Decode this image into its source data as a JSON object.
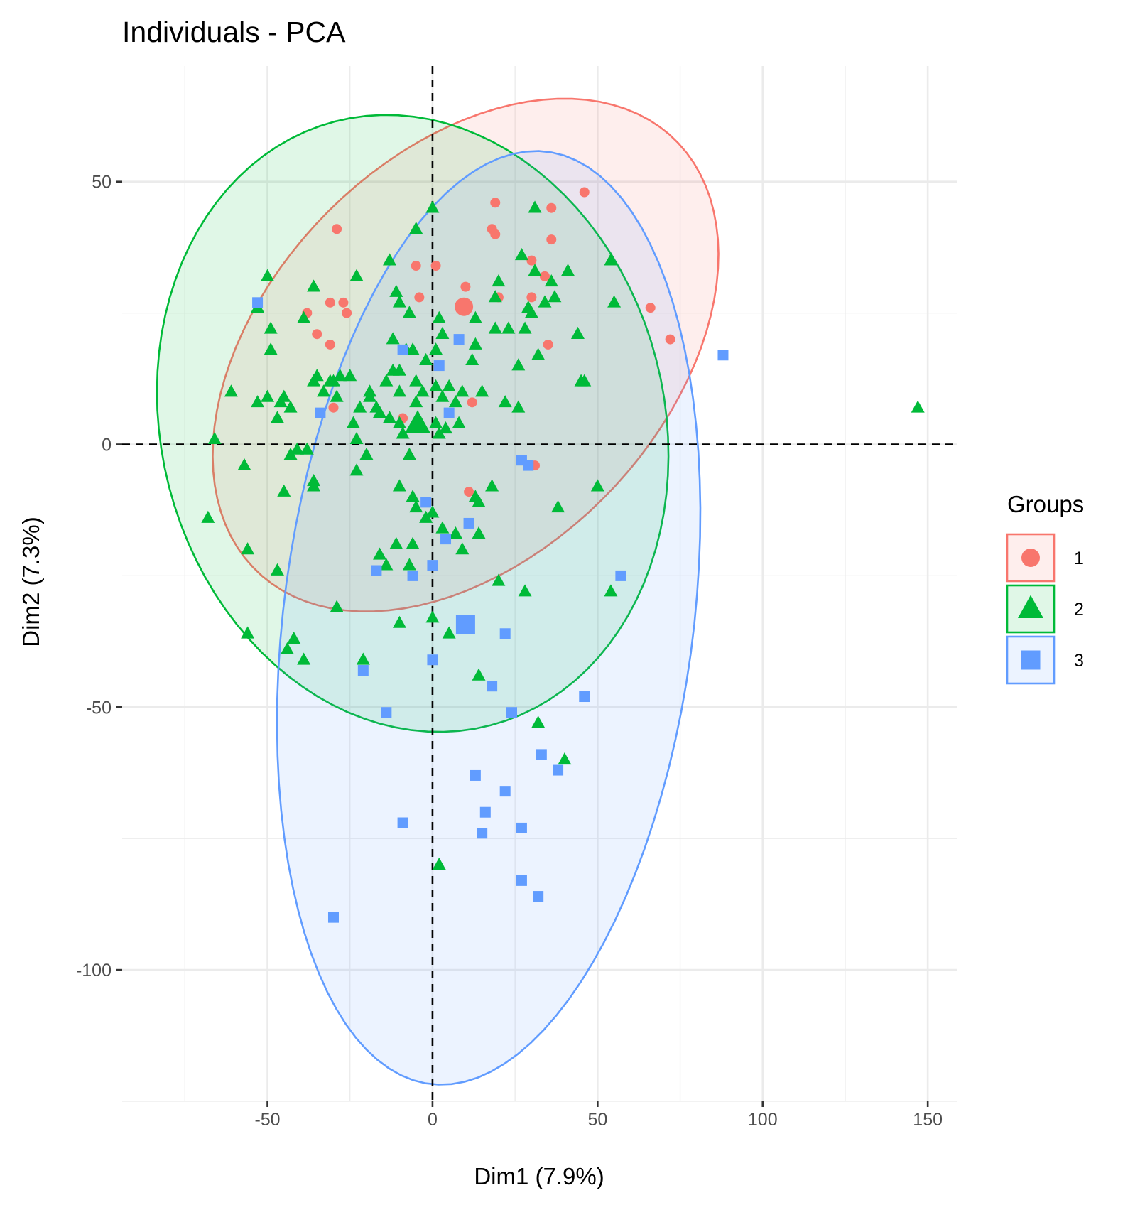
{
  "chart_data": {
    "type": "scatter",
    "title": "Individuals - PCA",
    "xlabel": "Dim1 (7.9%)",
    "ylabel": "Dim2 (7.3%)",
    "xlim": [
      -94,
      159
    ],
    "ylim": [
      -125,
      72
    ],
    "x_ticks": [
      -50,
      0,
      50,
      100,
      150
    ],
    "y_ticks": [
      50,
      0,
      -50,
      -100
    ],
    "grid": true,
    "reference_lines": {
      "x": 0,
      "y": 0,
      "style": "dashed"
    },
    "legend": {
      "title": "Groups",
      "placement": "right"
    },
    "colors": {
      "1": "#f8766d",
      "2": "#00ba38",
      "3": "#619cff"
    },
    "series": [
      {
        "name": "1",
        "marker": "circle",
        "color": "#f8766d",
        "centroid": [
          9.5,
          26.2
        ],
        "ellipse": {
          "cx": 10,
          "cy": 17,
          "rx": 80,
          "ry": 43,
          "angle_deg": 20
        },
        "points": [
          [
            46,
            48
          ],
          [
            19,
            46
          ],
          [
            36,
            45
          ],
          [
            -29,
            41
          ],
          [
            18,
            41
          ],
          [
            19,
            40
          ],
          [
            36,
            39
          ],
          [
            30,
            35
          ],
          [
            -5,
            34
          ],
          [
            1,
            34
          ],
          [
            34,
            32
          ],
          [
            10,
            30
          ],
          [
            -4,
            28
          ],
          [
            20,
            28
          ],
          [
            30,
            28
          ],
          [
            -31,
            27
          ],
          [
            -27,
            27
          ],
          [
            -38,
            25
          ],
          [
            -26,
            25
          ],
          [
            66,
            26
          ],
          [
            -35,
            21
          ],
          [
            35,
            19
          ],
          [
            -31,
            19
          ],
          [
            72,
            20
          ],
          [
            -30,
            7
          ],
          [
            12,
            8
          ],
          [
            -9,
            5
          ],
          [
            31,
            -4
          ],
          [
            11,
            -9
          ]
        ]
      },
      {
        "name": "2",
        "marker": "triangle",
        "color": "#00ba38",
        "centroid": [
          -4.5,
          3.9
        ],
        "ellipse": {
          "cx": -6,
          "cy": 4,
          "rx": 78,
          "ry": 58,
          "angle_deg": -10
        },
        "points": [
          [
            147,
            7
          ],
          [
            -66,
            1
          ],
          [
            -57,
            -4
          ],
          [
            -68,
            -14
          ],
          [
            -56,
            -20
          ],
          [
            -47,
            -24
          ],
          [
            -56,
            -36
          ],
          [
            -42,
            -37
          ],
          [
            -44,
            -39
          ],
          [
            -39,
            -41
          ],
          [
            -29,
            -31
          ],
          [
            -21,
            -41
          ],
          [
            -10,
            -34
          ],
          [
            0,
            -33
          ],
          [
            5,
            -36
          ],
          [
            14,
            -44
          ],
          [
            32,
            -53
          ],
          [
            40,
            -60
          ],
          [
            2,
            -80
          ],
          [
            -61,
            10
          ],
          [
            -53,
            26
          ],
          [
            -50,
            32
          ],
          [
            -49,
            22
          ],
          [
            -49,
            18
          ],
          [
            -43,
            7
          ],
          [
            -45,
            9
          ],
          [
            -41,
            -1
          ],
          [
            -36,
            -7
          ],
          [
            -36,
            -8
          ],
          [
            -45,
            -9
          ],
          [
            -43,
            -2
          ],
          [
            -38,
            -1
          ],
          [
            -39,
            24
          ],
          [
            -36,
            30
          ],
          [
            -28,
            13
          ],
          [
            -30,
            12
          ],
          [
            -25,
            13
          ],
          [
            -23,
            -5
          ],
          [
            -23,
            1
          ],
          [
            -20,
            -2
          ],
          [
            -19,
            9
          ],
          [
            -17,
            7
          ],
          [
            -14,
            12
          ],
          [
            -12,
            14
          ],
          [
            -10,
            10
          ],
          [
            -9,
            2
          ],
          [
            -7,
            -2
          ],
          [
            -10,
            -8
          ],
          [
            -6,
            -10
          ],
          [
            -5,
            -12
          ],
          [
            0,
            -13
          ],
          [
            -2,
            -14
          ],
          [
            3,
            -16
          ],
          [
            7,
            -17
          ],
          [
            9,
            -20
          ],
          [
            14,
            -17
          ],
          [
            13,
            -10
          ],
          [
            18,
            -8
          ],
          [
            14,
            -11
          ],
          [
            20,
            -26
          ],
          [
            28,
            -28
          ],
          [
            38,
            -12
          ],
          [
            50,
            -8
          ],
          [
            54,
            -28
          ],
          [
            -16,
            -21
          ],
          [
            -14,
            -23
          ],
          [
            -11,
            -19
          ],
          [
            -6,
            -19
          ],
          [
            -7,
            -23
          ],
          [
            -5,
            12
          ],
          [
            -3,
            10
          ],
          [
            1,
            11
          ],
          [
            3,
            9
          ],
          [
            5,
            11
          ],
          [
            7,
            8
          ],
          [
            9,
            10
          ],
          [
            12,
            16
          ],
          [
            13,
            19
          ],
          [
            15,
            10
          ],
          [
            19,
            22
          ],
          [
            23,
            22
          ],
          [
            26,
            15
          ],
          [
            26,
            7
          ],
          [
            22,
            8
          ],
          [
            28,
            22
          ],
          [
            29,
            26
          ],
          [
            30,
            25
          ],
          [
            32,
            17
          ],
          [
            34,
            27
          ],
          [
            36,
            31
          ],
          [
            37,
            28
          ],
          [
            41,
            33
          ],
          [
            44,
            21
          ],
          [
            45,
            12
          ],
          [
            46,
            12
          ],
          [
            54,
            35
          ],
          [
            55,
            27
          ],
          [
            31,
            45
          ],
          [
            27,
            36
          ],
          [
            31,
            33
          ],
          [
            20,
            31
          ],
          [
            19,
            28
          ],
          [
            13,
            24
          ],
          [
            2,
            24
          ],
          [
            3,
            21
          ],
          [
            1,
            18
          ],
          [
            -2,
            16
          ],
          [
            -6,
            18
          ],
          [
            -8,
            18
          ],
          [
            -10,
            14
          ],
          [
            -12,
            20
          ],
          [
            -11,
            29
          ],
          [
            -10,
            27
          ],
          [
            -7,
            25
          ],
          [
            -5,
            41
          ],
          [
            0,
            45
          ],
          [
            -13,
            35
          ],
          [
            -23,
            32
          ],
          [
            -19,
            10
          ],
          [
            -22,
            7
          ],
          [
            -16,
            6
          ],
          [
            -13,
            5
          ],
          [
            -10,
            4
          ],
          [
            -5,
            8
          ],
          [
            2,
            2
          ],
          [
            1,
            4
          ],
          [
            4,
            3
          ],
          [
            8,
            4
          ],
          [
            -24,
            4
          ],
          [
            -29,
            9
          ],
          [
            -33,
            10
          ],
          [
            -36,
            12
          ],
          [
            -35,
            13
          ],
          [
            -31,
            12
          ],
          [
            -50,
            9
          ],
          [
            -53,
            8
          ],
          [
            -47,
            5
          ],
          [
            -46,
            8
          ]
        ]
      },
      {
        "name": "3",
        "marker": "square",
        "color": "#619cff",
        "centroid": [
          10,
          -34.3
        ],
        "ellipse": {
          "cx": 17,
          "cy": -33,
          "rx": 91,
          "ry": 61,
          "angle_deg": 73
        },
        "points": [
          [
            88,
            17
          ],
          [
            -53,
            27
          ],
          [
            -34,
            6
          ],
          [
            -9,
            18
          ],
          [
            2,
            15
          ],
          [
            5,
            6
          ],
          [
            8,
            20
          ],
          [
            -2,
            -11
          ],
          [
            11,
            -15
          ],
          [
            4,
            -18
          ],
          [
            0,
            -23
          ],
          [
            -6,
            -25
          ],
          [
            -17,
            -24
          ],
          [
            27,
            -3
          ],
          [
            29,
            -4
          ],
          [
            57,
            -25
          ],
          [
            22,
            -36
          ],
          [
            18,
            -46
          ],
          [
            0,
            -41
          ],
          [
            -21,
            -43
          ],
          [
            -14,
            -51
          ],
          [
            24,
            -51
          ],
          [
            46,
            -48
          ],
          [
            33,
            -59
          ],
          [
            38,
            -62
          ],
          [
            13,
            -63
          ],
          [
            22,
            -66
          ],
          [
            16,
            -70
          ],
          [
            -9,
            -72
          ],
          [
            27,
            -73
          ],
          [
            15,
            -74
          ],
          [
            27,
            -83
          ],
          [
            32,
            -86
          ],
          [
            -30,
            -90
          ]
        ]
      }
    ]
  }
}
